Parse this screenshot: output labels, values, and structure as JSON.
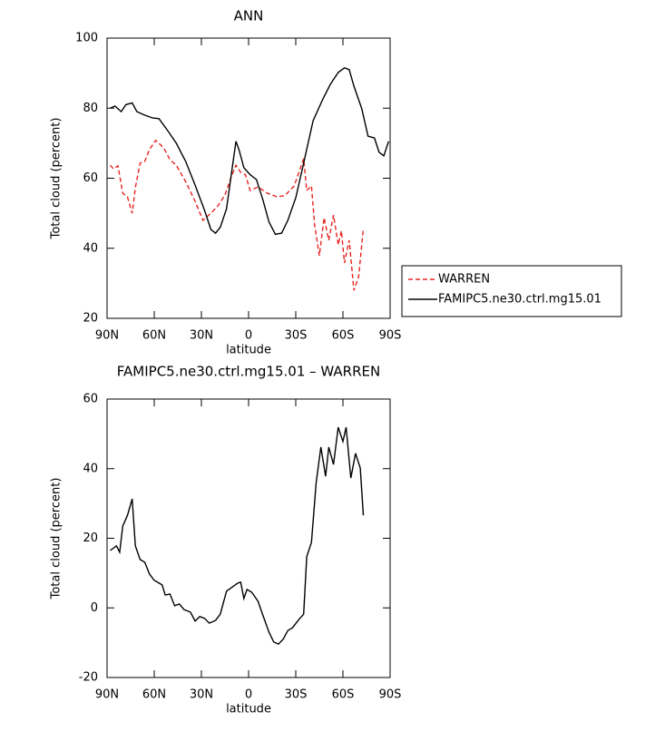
{
  "chart_data": [
    {
      "type": "line",
      "title": "ANN",
      "xlabel": "latitude",
      "ylabel": "Total cloud (percent)",
      "xlim": [
        90,
        -90
      ],
      "ylim": [
        20,
        100
      ],
      "xticks": [
        {
          "value": 90,
          "label": "90N"
        },
        {
          "value": 60,
          "label": "60N"
        },
        {
          "value": 30,
          "label": "30N"
        },
        0,
        {
          "value": -30,
          "label": "30S"
        },
        {
          "value": -60,
          "label": "60S"
        },
        {
          "value": -90,
          "label": "90S"
        }
      ],
      "yticks": [
        20,
        40,
        60,
        80,
        100
      ],
      "legend": "right",
      "series": [
        {
          "name": "WARREN",
          "color": "#e8231f",
          "line_style": "dashed",
          "x": [
            88,
            86,
            83,
            80,
            77,
            74,
            72,
            69,
            66,
            63,
            59,
            54,
            50,
            46,
            40,
            34,
            29,
            24,
            20,
            15,
            11,
            8,
            5,
            2,
            -1,
            -6,
            -12,
            -18,
            -23,
            -29,
            -35,
            -37,
            -40,
            -42,
            -45,
            -48,
            -51,
            -54,
            -57,
            -59,
            -61,
            -64,
            -67,
            -70,
            -73
          ],
          "values": [
            63.7,
            62.7,
            63.5,
            55.7,
            54.7,
            50,
            57.3,
            64.3,
            64.8,
            68.2,
            70.8,
            68.7,
            65.3,
            63.7,
            59,
            53.4,
            48,
            50,
            51.8,
            55.2,
            60.4,
            63.7,
            61.7,
            61,
            56.5,
            57.5,
            55.7,
            54.7,
            55,
            57.8,
            65.6,
            56.5,
            57.8,
            46.7,
            37.9,
            48.7,
            42.3,
            49.5,
            41,
            45,
            35.8,
            42.3,
            28,
            31.8,
            45.6
          ]
        },
        {
          "name": "FAMIPC5.ne30.ctrl.mg15.01",
          "color": "#000000",
          "line_style": "solid",
          "x": [
            88,
            85,
            81,
            78,
            74,
            71,
            66,
            61,
            57,
            51,
            46,
            40,
            34,
            28,
            24,
            21,
            18,
            14,
            10,
            8,
            6,
            3,
            -1,
            -5,
            -9,
            -13,
            -17,
            -21,
            -25,
            -30,
            -35,
            -41,
            -47,
            -52,
            -57,
            -61,
            -64,
            -67,
            -72,
            -76,
            -80,
            -83,
            -86,
            -89
          ],
          "values": [
            80,
            80.6,
            79,
            81,
            81.5,
            79,
            78,
            77.2,
            77,
            73.3,
            70,
            64.8,
            58,
            50.8,
            45.4,
            44.3,
            46,
            51.3,
            64.3,
            70.5,
            68,
            63,
            61,
            59.6,
            54,
            47.5,
            44,
            44.3,
            48,
            54.4,
            64.3,
            76.4,
            82.4,
            86.8,
            90.2,
            91.5,
            91,
            86.3,
            79.8,
            72,
            71.5,
            67.4,
            66.4,
            70.5
          ]
        }
      ]
    },
    {
      "type": "line",
      "title": "FAMIPC5.ne30.ctrl.mg15.01 – WARREN",
      "xlabel": "latitude",
      "ylabel": "Total cloud (percent)",
      "xlim": [
        90,
        -90
      ],
      "ylim": [
        -20,
        60
      ],
      "xticks": [
        {
          "value": 90,
          "label": "90N"
        },
        {
          "value": 60,
          "label": "60N"
        },
        {
          "value": 30,
          "label": "30N"
        },
        0,
        {
          "value": -30,
          "label": "30S"
        },
        {
          "value": -60,
          "label": "60S"
        },
        {
          "value": -90,
          "label": "90S"
        }
      ],
      "yticks": [
        -20,
        0,
        20,
        40,
        60
      ],
      "series": [
        {
          "color": "#000000",
          "line_style": "solid",
          "x": [
            88,
            84,
            82,
            80,
            77,
            74,
            72,
            69,
            66,
            63,
            60,
            55,
            53,
            50,
            47,
            44,
            41,
            37,
            34,
            31,
            28,
            25,
            21,
            18,
            14,
            10,
            7,
            5,
            3,
            1,
            -2,
            -6,
            -9,
            -13,
            -16,
            -19,
            -22,
            -25,
            -28,
            -32,
            -35,
            -37,
            -40,
            -43,
            -46,
            -49,
            -51,
            -54,
            -57,
            -60,
            -62,
            -65,
            -68,
            -71,
            -73
          ],
          "values": [
            16.5,
            17.8,
            16,
            23.5,
            26.6,
            31.3,
            17.8,
            13.9,
            13.1,
            9.7,
            7.9,
            6.6,
            3.7,
            4,
            0.6,
            1.1,
            -0.5,
            -1.2,
            -3.8,
            -2.5,
            -3,
            -4.4,
            -3.6,
            -1.8,
            4.8,
            6.1,
            7.1,
            7.4,
            2.7,
            5.3,
            4.5,
            1.9,
            -2,
            -7,
            -9.8,
            -10.4,
            -9,
            -6.5,
            -5.7,
            -3.3,
            -1.8,
            14.7,
            18.8,
            36,
            46.2,
            37.8,
            46.2,
            41.2,
            51.9,
            47.8,
            51.9,
            37.3,
            44.4,
            40.2,
            26.6
          ]
        }
      ]
    }
  ]
}
